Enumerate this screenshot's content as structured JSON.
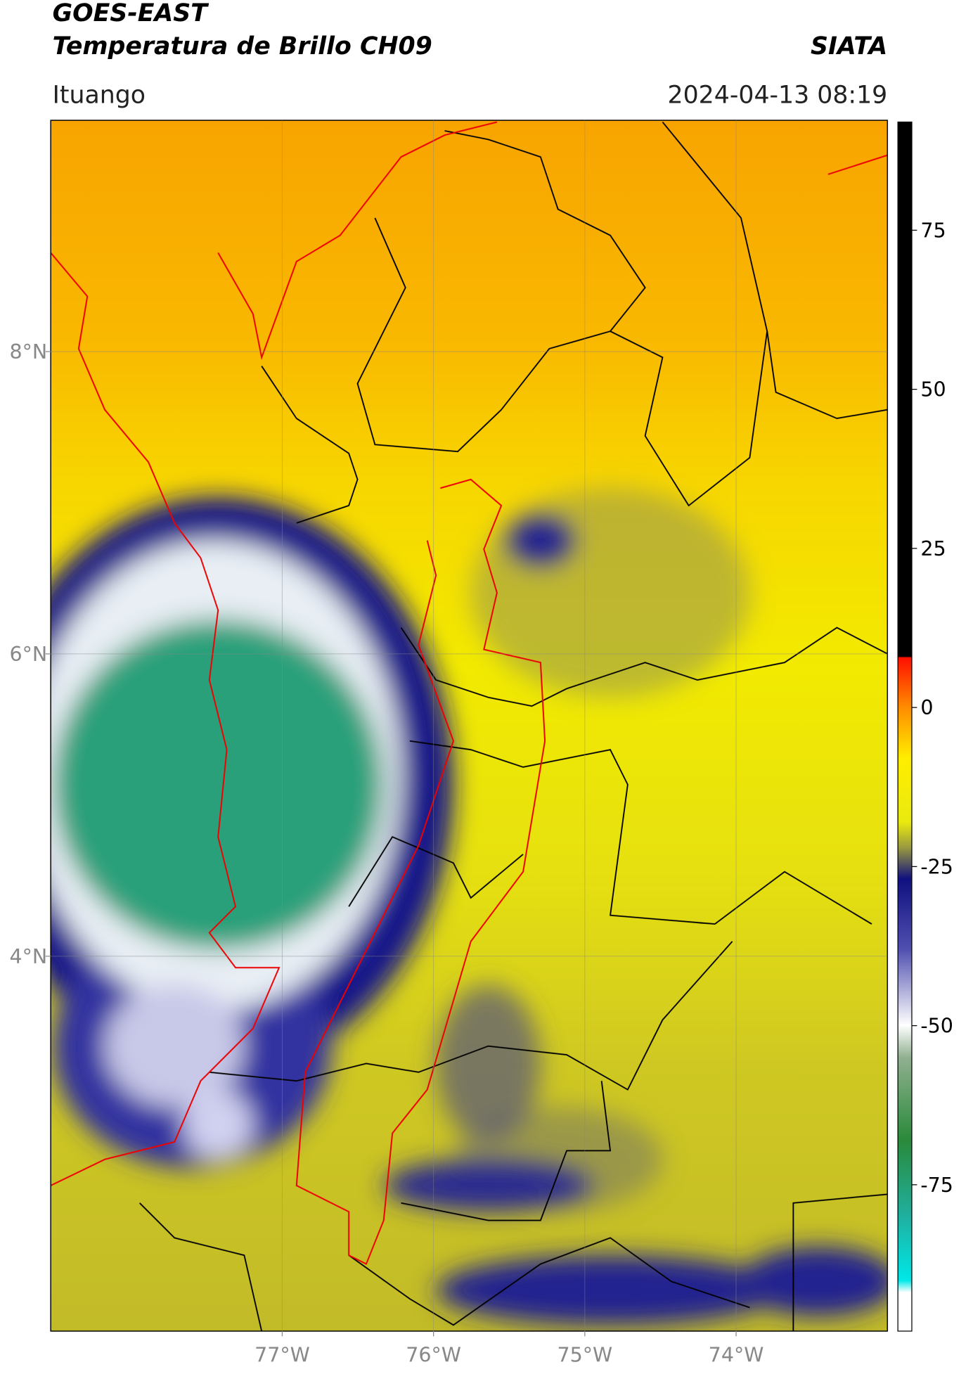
{
  "header": {
    "title": "GOES-EAST",
    "subtitle": "Temperatura de Brillo CH09",
    "source": "SIATA",
    "location": "Ituango",
    "datetime": "2024-04-13 08:19"
  },
  "map": {
    "xlim": [
      -78.53,
      -73.0
    ],
    "ylim": [
      1.52,
      9.53
    ],
    "xticks": [
      {
        "value": -77,
        "label": "77°W"
      },
      {
        "value": -76,
        "label": "76°W"
      },
      {
        "value": -75,
        "label": "75°W"
      },
      {
        "value": -74,
        "label": "74°W"
      }
    ],
    "yticks": [
      {
        "value": 8,
        "label": "8°N"
      },
      {
        "value": 6,
        "label": "6°N"
      },
      {
        "value": 4,
        "label": "4°N"
      }
    ]
  },
  "colorbar": {
    "lim": [
      -98,
      92
    ],
    "ticks": [
      75,
      50,
      25,
      0,
      -25,
      -50,
      -75
    ]
  }
}
